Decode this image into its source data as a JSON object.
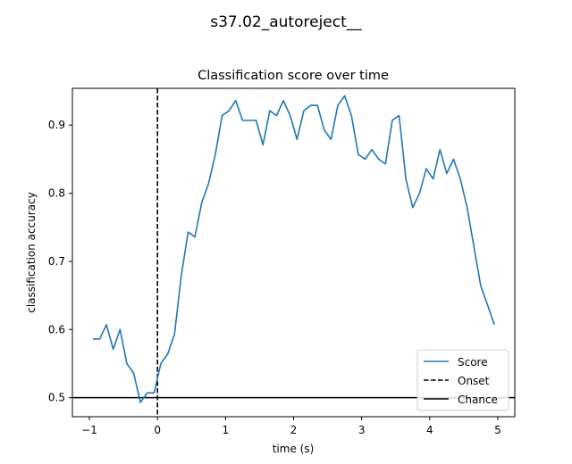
{
  "figure": {
    "suptitle": "s37.02_autoreject__"
  },
  "chart_data": {
    "type": "line",
    "title": "Classification score over time",
    "xlabel": "time (s)",
    "ylabel": "classification accuracy",
    "xlim": [
      -1.25,
      5.25
    ],
    "ylim": [
      0.472,
      0.954
    ],
    "xticks": [
      -1,
      0,
      1,
      2,
      3,
      4,
      5
    ],
    "xtick_labels": [
      "−1",
      "0",
      "1",
      "2",
      "3",
      "4",
      "5"
    ],
    "yticks": [
      0.5,
      0.6,
      0.7,
      0.8,
      0.9
    ],
    "ytick_labels": [
      "0.5",
      "0.6",
      "0.7",
      "0.8",
      "0.9"
    ],
    "grid": false,
    "legend_position": "lower-right",
    "series": [
      {
        "name": "Score",
        "color": "#1f77b4",
        "style": "solid",
        "x": [
          -0.95,
          -0.85,
          -0.75,
          -0.65,
          -0.55,
          -0.45,
          -0.35,
          -0.25,
          -0.15,
          -0.05,
          0.05,
          0.15,
          0.25,
          0.35,
          0.45,
          0.55,
          0.65,
          0.75,
          0.85,
          0.95,
          1.05,
          1.15,
          1.25,
          1.35,
          1.45,
          1.55,
          1.65,
          1.75,
          1.85,
          1.95,
          2.05,
          2.15,
          2.25,
          2.35,
          2.45,
          2.55,
          2.65,
          2.75,
          2.85,
          2.95,
          3.05,
          3.15,
          3.25,
          3.35,
          3.45,
          3.55,
          3.65,
          3.75,
          3.85,
          3.95,
          4.05,
          4.15,
          4.25,
          4.35,
          4.45,
          4.55,
          4.65,
          4.75,
          4.85,
          4.95
        ],
        "values": [
          0.586,
          0.586,
          0.607,
          0.571,
          0.6,
          0.55,
          0.536,
          0.493,
          0.507,
          0.507,
          0.55,
          0.564,
          0.593,
          0.679,
          0.743,
          0.736,
          0.786,
          0.814,
          0.857,
          0.914,
          0.921,
          0.936,
          0.907,
          0.907,
          0.907,
          0.871,
          0.921,
          0.914,
          0.936,
          0.914,
          0.879,
          0.921,
          0.929,
          0.929,
          0.893,
          0.879,
          0.929,
          0.943,
          0.914,
          0.857,
          0.85,
          0.864,
          0.85,
          0.843,
          0.907,
          0.914,
          0.821,
          0.779,
          0.8,
          0.836,
          0.821,
          0.864,
          0.829,
          0.85,
          0.821,
          0.779,
          0.721,
          0.664,
          0.636,
          0.607
        ]
      }
    ],
    "reference_lines": [
      {
        "name": "Onset",
        "orientation": "vertical",
        "value": 0,
        "color": "#000000",
        "style": "dashed"
      },
      {
        "name": "Chance",
        "orientation": "horizontal",
        "value": 0.5,
        "color": "#000000",
        "style": "solid"
      }
    ],
    "legend": [
      "Score",
      "Onset",
      "Chance"
    ]
  }
}
